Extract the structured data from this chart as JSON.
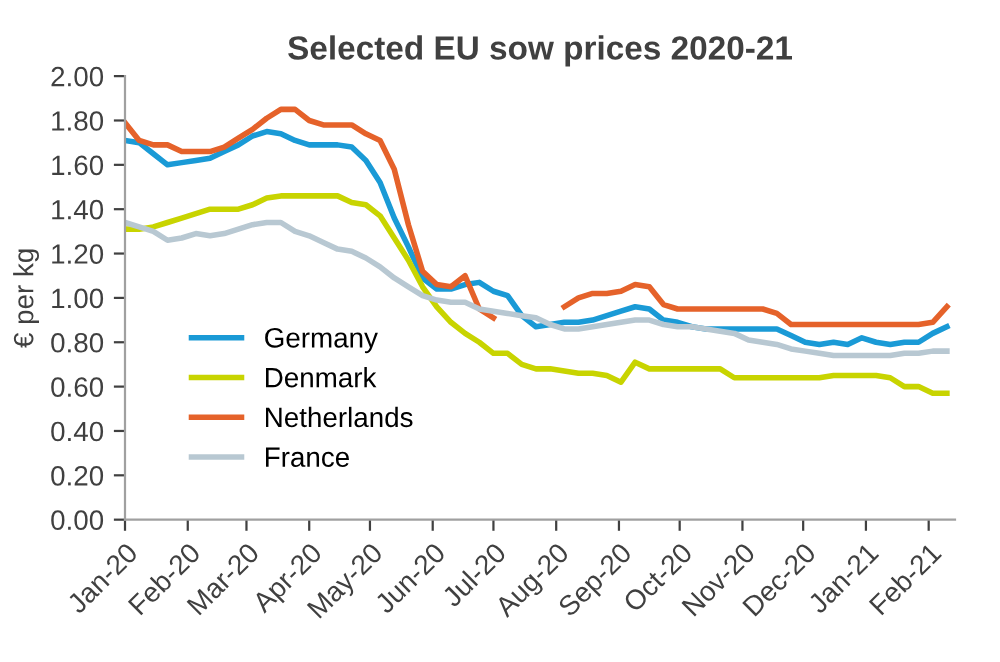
{
  "chart_data": {
    "type": "line",
    "title": "Selected EU sow prices 2020-21",
    "ylabel": "€ per kg",
    "x": [
      "2020-01-01",
      "2020-01-08",
      "2020-01-15",
      "2020-01-22",
      "2020-01-29",
      "2020-02-05",
      "2020-02-12",
      "2020-02-19",
      "2020-02-26",
      "2020-03-04",
      "2020-03-11",
      "2020-03-18",
      "2020-03-25",
      "2020-04-01",
      "2020-04-08",
      "2020-04-15",
      "2020-04-22",
      "2020-04-29",
      "2020-05-06",
      "2020-05-13",
      "2020-05-20",
      "2020-05-27",
      "2020-06-03",
      "2020-06-10",
      "2020-06-17",
      "2020-06-24",
      "2020-07-01",
      "2020-07-08",
      "2020-07-15",
      "2020-07-22",
      "2020-07-29",
      "2020-08-05",
      "2020-08-12",
      "2020-08-19",
      "2020-08-26",
      "2020-09-02",
      "2020-09-09",
      "2020-09-16",
      "2020-09-23",
      "2020-09-30",
      "2020-10-07",
      "2020-10-14",
      "2020-10-21",
      "2020-10-28",
      "2020-11-04",
      "2020-11-11",
      "2020-11-18",
      "2020-11-25",
      "2020-12-02",
      "2020-12-09",
      "2020-12-16",
      "2020-12-23",
      "2020-12-30",
      "2021-01-06",
      "2021-01-13",
      "2021-01-20",
      "2021-01-27",
      "2021-02-03",
      "2021-02-10"
    ],
    "series": [
      {
        "name": "Germany",
        "color": "#1a9ad6",
        "values": [
          1.71,
          1.7,
          1.65,
          1.6,
          1.61,
          1.62,
          1.63,
          1.66,
          1.69,
          1.73,
          1.75,
          1.74,
          1.71,
          1.69,
          1.69,
          1.69,
          1.68,
          1.62,
          1.52,
          1.36,
          1.23,
          1.09,
          1.04,
          1.04,
          1.06,
          1.07,
          1.03,
          1.01,
          0.92,
          0.87,
          0.88,
          0.89,
          0.89,
          0.9,
          0.92,
          0.94,
          0.96,
          0.95,
          0.9,
          0.89,
          0.87,
          0.86,
          0.86,
          0.86,
          0.86,
          0.86,
          0.86,
          0.83,
          0.8,
          0.79,
          0.8,
          0.79,
          0.82,
          0.8,
          0.79,
          0.8,
          0.8,
          0.84,
          0.87
        ]
      },
      {
        "name": "Denmark",
        "color": "#c8d400",
        "values": [
          1.31,
          1.31,
          1.32,
          1.34,
          1.36,
          1.38,
          1.4,
          1.4,
          1.4,
          1.42,
          1.45,
          1.46,
          1.46,
          1.46,
          1.46,
          1.46,
          1.43,
          1.42,
          1.37,
          1.27,
          1.17,
          1.05,
          0.96,
          0.89,
          0.84,
          0.8,
          0.75,
          0.75,
          0.7,
          0.68,
          0.68,
          0.67,
          0.66,
          0.66,
          0.65,
          0.62,
          0.71,
          0.68,
          0.68,
          0.68,
          0.68,
          0.68,
          0.68,
          0.64,
          0.64,
          0.64,
          0.64,
          0.64,
          0.64,
          0.64,
          0.65,
          0.65,
          0.65,
          0.65,
          0.64,
          0.6,
          0.6,
          0.57,
          0.57
        ]
      },
      {
        "name": "Netherlands",
        "color": "#e5622a",
        "values": [
          1.79,
          1.71,
          1.69,
          1.69,
          1.66,
          1.66,
          1.66,
          1.68,
          1.72,
          1.76,
          1.81,
          1.85,
          1.85,
          1.8,
          1.78,
          1.78,
          1.78,
          1.74,
          1.71,
          1.58,
          1.33,
          1.12,
          1.06,
          1.05,
          1.1,
          0.95,
          0.91,
          null,
          null,
          null,
          null,
          0.96,
          1.0,
          1.02,
          1.02,
          1.03,
          1.06,
          1.05,
          0.97,
          0.95,
          0.95,
          0.95,
          0.95,
          0.95,
          0.95,
          0.95,
          0.93,
          0.88,
          0.88,
          0.88,
          0.88,
          0.88,
          0.88,
          0.88,
          0.88,
          0.88,
          0.88,
          0.89,
          0.96
        ]
      },
      {
        "name": "France",
        "color": "#b8c8d2",
        "values": [
          1.34,
          1.32,
          1.3,
          1.26,
          1.27,
          1.29,
          1.28,
          1.29,
          1.31,
          1.33,
          1.34,
          1.34,
          1.3,
          1.28,
          1.25,
          1.22,
          1.21,
          1.18,
          1.14,
          1.09,
          1.05,
          1.01,
          0.99,
          0.98,
          0.98,
          0.95,
          0.94,
          0.93,
          0.92,
          0.91,
          0.88,
          0.86,
          0.86,
          0.87,
          0.88,
          0.89,
          0.9,
          0.9,
          0.88,
          0.87,
          0.87,
          0.86,
          0.85,
          0.84,
          0.81,
          0.8,
          0.79,
          0.77,
          0.76,
          0.75,
          0.74,
          0.74,
          0.74,
          0.74,
          0.74,
          0.75,
          0.75,
          0.76,
          0.76
        ]
      }
    ],
    "xlim": [
      "2020-01-01",
      "2021-02-14"
    ],
    "xticks": [
      {
        "value": "2020-01-01",
        "label": "Jan-20"
      },
      {
        "value": "2020-02-01",
        "label": "Feb-20"
      },
      {
        "value": "2020-03-01",
        "label": "Mar-20"
      },
      {
        "value": "2020-04-01",
        "label": "Apr-20"
      },
      {
        "value": "2020-05-01",
        "label": "May-20"
      },
      {
        "value": "2020-06-01",
        "label": "Jun-20"
      },
      {
        "value": "2020-07-01",
        "label": "Jul-20"
      },
      {
        "value": "2020-08-01",
        "label": "Aug-20"
      },
      {
        "value": "2020-09-01",
        "label": "Sep-20"
      },
      {
        "value": "2020-10-01",
        "label": "Oct-20"
      },
      {
        "value": "2020-11-01",
        "label": "Nov-20"
      },
      {
        "value": "2020-12-01",
        "label": "Dec-20"
      },
      {
        "value": "2021-01-01",
        "label": "Jan-21"
      },
      {
        "value": "2021-02-01",
        "label": "Feb-21"
      }
    ],
    "ylim": [
      0,
      2
    ],
    "yticks": [
      {
        "value": 0,
        "label": "0.00"
      },
      {
        "value": 0.2,
        "label": "0.20"
      },
      {
        "value": 0.4,
        "label": "0.40"
      },
      {
        "value": 0.6,
        "label": "0.60"
      },
      {
        "value": 0.8,
        "label": "0.80"
      },
      {
        "value": 1.0,
        "label": "1.00"
      },
      {
        "value": 1.2,
        "label": "1.20"
      },
      {
        "value": 1.4,
        "label": "1.40"
      },
      {
        "value": 1.6,
        "label": "1.60"
      },
      {
        "value": 1.8,
        "label": "1.80"
      },
      {
        "value": 2.0,
        "label": "2.00"
      }
    ],
    "grid": false,
    "legend": "bottom left",
    "marker": "none",
    "line_style": "solid"
  }
}
